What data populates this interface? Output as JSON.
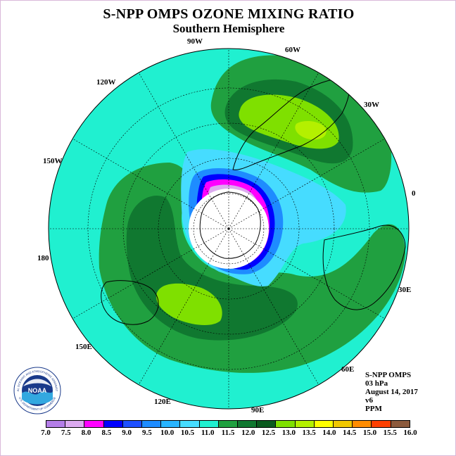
{
  "title": "S-NPP OMPS OZONE MIXING RATIO",
  "subtitle": "Southern Hemisphere",
  "longitude_labels": [
    "90W",
    "60W",
    "30W",
    "0",
    "30E",
    "60E",
    "90E",
    "120E",
    "150E",
    "180",
    "150W",
    "120W"
  ],
  "info": {
    "instrument": "S-NPP OMPS",
    "level": "03 hPa",
    "date": "August 14, 2017",
    "version": "v6",
    "units": "PPM"
  },
  "colorbar": {
    "ticks": [
      "7.0",
      "7.5",
      "8.0",
      "8.5",
      "9.0",
      "9.5",
      "10.0",
      "10.5",
      "11.0",
      "11.5",
      "12.0",
      "12.5",
      "13.0",
      "13.5",
      "14.0",
      "14.5",
      "15.0",
      "15.5",
      "16.0"
    ],
    "colors": [
      "#b47ee8",
      "#dcaaf0",
      "#ff00ff",
      "#0000ff",
      "#1e50ff",
      "#1e8cff",
      "#28b4ff",
      "#46dcff",
      "#20f0d0",
      "#20a040",
      "#107830",
      "#0a5a1e",
      "#7fe000",
      "#b4f000",
      "#ffff00",
      "#f0c800",
      "#ff8c00",
      "#ff4000",
      "#8c5a3c"
    ]
  },
  "logo": {
    "text": "NOAA",
    "ring_text": "NATIONAL OCEANIC AND ATMOSPHERIC ADMINISTRATION",
    "ring_text_bottom": "U.S. DEPARTMENT OF COMMERCE"
  }
}
